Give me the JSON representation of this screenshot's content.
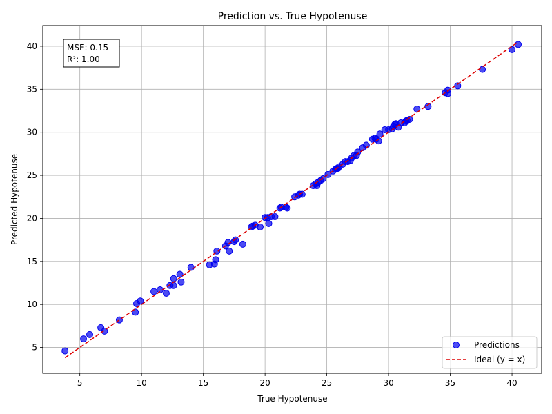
{
  "chart_data": {
    "type": "scatter",
    "title": "Prediction vs. True Hypotenuse",
    "xlabel": "True Hypotenuse",
    "ylabel": "Predicted Hypotenuse",
    "xlim": [
      2.0,
      42.4
    ],
    "ylim": [
      2.0,
      42.4
    ],
    "xticks": [
      5,
      10,
      15,
      20,
      25,
      30,
      35,
      40
    ],
    "yticks": [
      5,
      10,
      15,
      20,
      25,
      30,
      35,
      40
    ],
    "grid": true,
    "legend_position": "lower-right",
    "annotation": {
      "line1": "MSE: 0.15",
      "line2": "R²: 1.00",
      "position": "top-left"
    },
    "series": [
      {
        "name": "Predictions",
        "kind": "scatter",
        "color": "#0000ee",
        "points": [
          [
            3.8,
            4.6
          ],
          [
            5.3,
            6.0
          ],
          [
            5.8,
            6.5
          ],
          [
            6.7,
            7.3
          ],
          [
            7.0,
            6.9
          ],
          [
            8.2,
            8.2
          ],
          [
            9.5,
            9.1
          ],
          [
            9.6,
            10.1
          ],
          [
            9.9,
            10.4
          ],
          [
            11.0,
            11.5
          ],
          [
            11.5,
            11.7
          ],
          [
            12.0,
            11.3
          ],
          [
            12.3,
            12.2
          ],
          [
            12.6,
            12.2
          ],
          [
            12.6,
            13.0
          ],
          [
            13.1,
            13.5
          ],
          [
            13.2,
            12.6
          ],
          [
            14.0,
            14.3
          ],
          [
            15.5,
            14.6
          ],
          [
            15.9,
            14.7
          ],
          [
            16.0,
            15.2
          ],
          [
            16.1,
            16.2
          ],
          [
            16.8,
            16.8
          ],
          [
            17.0,
            17.2
          ],
          [
            17.1,
            16.2
          ],
          [
            17.5,
            17.3
          ],
          [
            17.6,
            17.5
          ],
          [
            18.2,
            17.0
          ],
          [
            18.9,
            19.0
          ],
          [
            19.0,
            19.1
          ],
          [
            19.2,
            19.2
          ],
          [
            19.6,
            19.0
          ],
          [
            20.0,
            20.1
          ],
          [
            20.2,
            20.1
          ],
          [
            20.3,
            19.4
          ],
          [
            20.5,
            20.2
          ],
          [
            20.8,
            20.2
          ],
          [
            21.2,
            21.2
          ],
          [
            21.3,
            21.3
          ],
          [
            21.7,
            21.3
          ],
          [
            21.8,
            21.2
          ],
          [
            22.4,
            22.5
          ],
          [
            22.7,
            22.7
          ],
          [
            22.8,
            22.8
          ],
          [
            23.0,
            22.8
          ],
          [
            23.9,
            23.8
          ],
          [
            24.1,
            24.0
          ],
          [
            24.2,
            23.8
          ],
          [
            24.3,
            24.2
          ],
          [
            24.5,
            24.4
          ],
          [
            24.7,
            24.6
          ],
          [
            25.1,
            25.1
          ],
          [
            25.5,
            25.5
          ],
          [
            25.7,
            25.7
          ],
          [
            25.8,
            25.8
          ],
          [
            25.9,
            25.8
          ],
          [
            26.0,
            26.0
          ],
          [
            26.3,
            26.3
          ],
          [
            26.5,
            26.6
          ],
          [
            26.7,
            26.6
          ],
          [
            26.9,
            26.7
          ],
          [
            27.0,
            27.0
          ],
          [
            27.2,
            27.3
          ],
          [
            27.4,
            27.3
          ],
          [
            27.5,
            27.7
          ],
          [
            27.9,
            28.2
          ],
          [
            28.2,
            28.5
          ],
          [
            28.7,
            29.2
          ],
          [
            28.9,
            29.3
          ],
          [
            29.0,
            29.2
          ],
          [
            29.2,
            29.0
          ],
          [
            29.3,
            29.8
          ],
          [
            29.7,
            30.3
          ],
          [
            30.0,
            30.3
          ],
          [
            30.3,
            30.4
          ],
          [
            30.4,
            30.7
          ],
          [
            30.5,
            30.9
          ],
          [
            30.6,
            31.0
          ],
          [
            30.8,
            30.6
          ],
          [
            31.0,
            31.1
          ],
          [
            31.3,
            31.1
          ],
          [
            31.4,
            31.3
          ],
          [
            31.5,
            31.4
          ],
          [
            31.7,
            31.5
          ],
          [
            32.3,
            32.7
          ],
          [
            33.2,
            33.0
          ],
          [
            34.6,
            34.6
          ],
          [
            34.8,
            34.5
          ],
          [
            34.8,
            34.9
          ],
          [
            35.6,
            35.4
          ],
          [
            37.6,
            37.3
          ],
          [
            40.0,
            39.6
          ],
          [
            40.5,
            40.2
          ]
        ]
      },
      {
        "name": "Ideal (y = x)",
        "kind": "line",
        "style": "dashed",
        "color": "#dd0000",
        "points": [
          [
            3.8,
            3.8
          ],
          [
            40.5,
            40.5
          ]
        ]
      }
    ]
  }
}
